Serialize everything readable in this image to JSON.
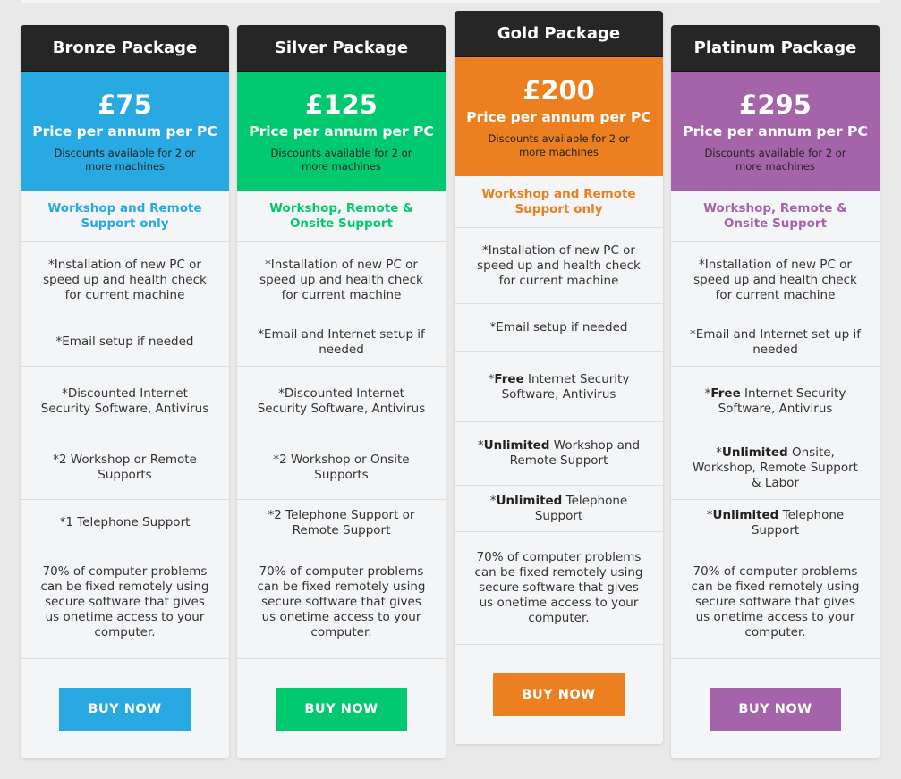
{
  "packages": [
    {
      "name": "Bronze Package",
      "color": "#28a9e1",
      "price": "£75",
      "per": "Price per annum per PC",
      "discount": "Discounts available for 2 or more machines",
      "subtitle": "Workshop and Remote Support only",
      "features": [
        {
          "pre": "*Installation of new PC or speed up and health check for current machine"
        },
        {
          "pre": "*Email setup if needed"
        },
        {
          "pre": "*Discounted Internet Security Software, Antivirus"
        },
        {
          "pre": "*2 Workshop or Remote Supports"
        },
        {
          "pre": "*1 Telephone Support"
        },
        {
          "pre": "70% of computer problems can be fixed remotely using secure software that gives us onetime access to your computer."
        }
      ],
      "button": "BUY NOW"
    },
    {
      "name": "Silver Package",
      "color": "#02c96f",
      "price": "£125",
      "per": "Price per annum per PC",
      "discount": "Discounts available for 2 or more machines",
      "subtitle": "Workshop, Remote & Onsite Support",
      "features": [
        {
          "pre": "*Installation of new PC or speed up and health check for current machine"
        },
        {
          "pre": "*Email and Internet setup if needed"
        },
        {
          "pre": "*Discounted Internet Security Software, Antivirus"
        },
        {
          "pre": "*2 Workshop or Onsite Supports"
        },
        {
          "pre": "*2 Telephone Support or Remote Support"
        },
        {
          "pre": "70% of computer problems can be fixed remotely using secure software that gives us onetime access to your computer."
        }
      ],
      "button": "BUY NOW"
    },
    {
      "name": "Gold Package",
      "color": "#ec7f1f",
      "price": "£200",
      "per": "Price per annum per PC",
      "discount": "Discounts available for 2 or more machines",
      "subtitle": "Workshop and Remote Support only",
      "features": [
        {
          "pre": "*Installation of new PC or speed up and health check for current machine"
        },
        {
          "pre": "*Email setup if needed"
        },
        {
          "pre": "*",
          "bold": "Free",
          "post": " Internet Security Software, Antivirus"
        },
        {
          "pre": "*",
          "bold": "Unlimited",
          "post": " Workshop and Remote Support"
        },
        {
          "pre": "*",
          "bold": "Unlimited",
          "post": " Telephone Support"
        },
        {
          "pre": "70% of computer problems can be fixed remotely using secure software that gives us onetime access to your computer."
        }
      ],
      "button": "BUY NOW"
    },
    {
      "name": "Platinum Package",
      "color": "#a564a9",
      "price": "£295",
      "per": "Price per annum per PC",
      "discount": "Discounts available for 2 or more machines",
      "subtitle": "Workshop, Remote & Onsite Support",
      "features": [
        {
          "pre": "*Installation of new PC or speed up and health check for current machine"
        },
        {
          "pre": "*Email and Internet set up if needed"
        },
        {
          "pre": "*",
          "bold": "Free",
          "post": " Internet Security Software, Antivirus"
        },
        {
          "pre": "*",
          "bold": "Unlimited",
          "post": " Onsite, Workshop, Remote Support & Labor"
        },
        {
          "pre": "*",
          "bold": "Unlimited",
          "post": " Telephone Support"
        },
        {
          "pre": "70% of computer problems can be fixed remotely using secure software that gives us onetime access to your computer."
        }
      ],
      "button": "BUY NOW"
    }
  ]
}
